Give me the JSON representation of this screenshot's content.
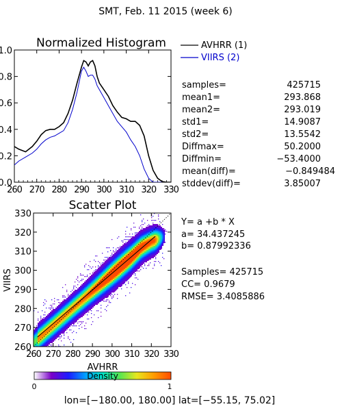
{
  "header": {
    "title": "SMT,  Feb. 11 2015 (week 6)"
  },
  "chart_data": [
    {
      "type": "line",
      "title": "Normalized Histogram",
      "xlim": [
        260,
        330
      ],
      "ylim": [
        0.0,
        1.0
      ],
      "x_tick_labels": [
        "260",
        "270",
        "280",
        "290",
        "300",
        "310",
        "320",
        "330"
      ],
      "y_tick_labels": [
        "0.0",
        "0.2",
        "0.4",
        "0.6",
        "0.8",
        "1.0"
      ],
      "x_ticks": [
        260,
        270,
        280,
        290,
        300,
        310,
        320,
        330
      ],
      "y_ticks": [
        0.0,
        0.2,
        0.4,
        0.6,
        0.8,
        1.0
      ],
      "legend_position": "top-right, outside plot",
      "series": [
        {
          "name": "AVHRR (1)",
          "color": "#000000",
          "x": [
            260,
            262,
            265,
            268,
            270,
            272,
            274,
            276,
            278,
            280,
            282,
            284,
            286,
            288,
            290,
            291,
            292,
            293,
            294,
            295,
            296,
            297,
            298,
            300,
            302,
            304,
            306,
            308,
            310,
            311,
            312,
            314,
            316,
            318,
            320,
            322,
            324,
            326,
            328,
            330
          ],
          "y": [
            0.27,
            0.25,
            0.23,
            0.27,
            0.31,
            0.36,
            0.39,
            0.4,
            0.4,
            0.42,
            0.45,
            0.52,
            0.62,
            0.75,
            0.87,
            0.92,
            0.91,
            0.88,
            0.91,
            0.92,
            0.88,
            0.8,
            0.75,
            0.7,
            0.65,
            0.58,
            0.53,
            0.49,
            0.48,
            0.47,
            0.46,
            0.46,
            0.43,
            0.35,
            0.2,
            0.09,
            0.03,
            0.005,
            0.0,
            0.0
          ]
        },
        {
          "name": "VIIRS (2)",
          "color": "#0000CC",
          "x": [
            260,
            262,
            265,
            268,
            270,
            272,
            274,
            276,
            278,
            280,
            282,
            284,
            286,
            288,
            290,
            291,
            292,
            293,
            294,
            295,
            296,
            297,
            298,
            300,
            302,
            304,
            306,
            308,
            310,
            311,
            312,
            314,
            316,
            318,
            320,
            322,
            324,
            326,
            328,
            330
          ],
          "y": [
            0.13,
            0.16,
            0.19,
            0.22,
            0.25,
            0.29,
            0.32,
            0.34,
            0.35,
            0.37,
            0.39,
            0.45,
            0.55,
            0.68,
            0.84,
            0.87,
            0.84,
            0.8,
            0.81,
            0.81,
            0.78,
            0.73,
            0.7,
            0.64,
            0.58,
            0.52,
            0.46,
            0.42,
            0.38,
            0.35,
            0.32,
            0.27,
            0.2,
            0.1,
            0.03,
            0.0,
            0.0,
            0.0,
            0.0,
            0.0
          ]
        }
      ]
    },
    {
      "type": "heatmap",
      "title": "Scatter Plot",
      "xlabel": "AVHRR",
      "ylabel": "VIIRS",
      "xlim": [
        260,
        330
      ],
      "ylim": [
        260,
        330
      ],
      "x_tick_labels": [
        "260",
        "270",
        "280",
        "290",
        "300",
        "310",
        "320",
        "330"
      ],
      "y_tick_labels": [
        "260",
        "270",
        "280",
        "290",
        "300",
        "310",
        "320",
        "330"
      ],
      "ticks": [
        260,
        270,
        280,
        290,
        300,
        310,
        320,
        330
      ],
      "fit_line": {
        "a": 34.437245,
        "b": 0.87992336,
        "color": "#000000"
      },
      "one_to_one_line": {
        "color": "#000000",
        "style": "dotted"
      },
      "density_ridge": {
        "x": [
          260,
          270,
          280,
          290,
          300,
          310,
          315,
          320
        ],
        "y": [
          262,
          271,
          280,
          289,
          298,
          307,
          312,
          315
        ]
      },
      "colorbar": {
        "label": "Density",
        "min_label": "0",
        "max_label": "1",
        "min": 0,
        "max": 1,
        "colors": [
          "#ffffff",
          "#7a00c8",
          "#1c1cff",
          "#00a0ff",
          "#00e6c8",
          "#55e650",
          "#e8e61e",
          "#ff9b00",
          "#ff4b00"
        ]
      }
    }
  ],
  "legend": {
    "avhrr": "AVHRR (1)",
    "viirs": "VIIRS (2)"
  },
  "stats": [
    {
      "label": "samples=",
      "value": "425715"
    },
    {
      "label": "mean1=",
      "value": "293.868"
    },
    {
      "label": "mean2=",
      "value": "293.019"
    },
    {
      "label": "std1=",
      "value": "14.9087"
    },
    {
      "label": "std2=",
      "value": "13.5542"
    },
    {
      "label": "Diffmax=",
      "value": "50.2000"
    },
    {
      "label": "Diffmin=",
      "value": "−53.4000"
    },
    {
      "label": "mean(diff)=",
      "value": "−0.849484"
    },
    {
      "label": "stddev(diff)=",
      "value": "3.85007"
    }
  ],
  "regression": {
    "equation": "Y= a +b * X",
    "a_text": "a= 34.437245",
    "b_text": "b= 0.87992336",
    "samples_text": "Samples= 425715",
    "cc_text": "CC=  0.9679",
    "rmse_text": "RMSE= 3.4085886"
  },
  "footer": {
    "range": "lon=[−180.00, 180.00] lat=[−55.15, 75.02]"
  }
}
